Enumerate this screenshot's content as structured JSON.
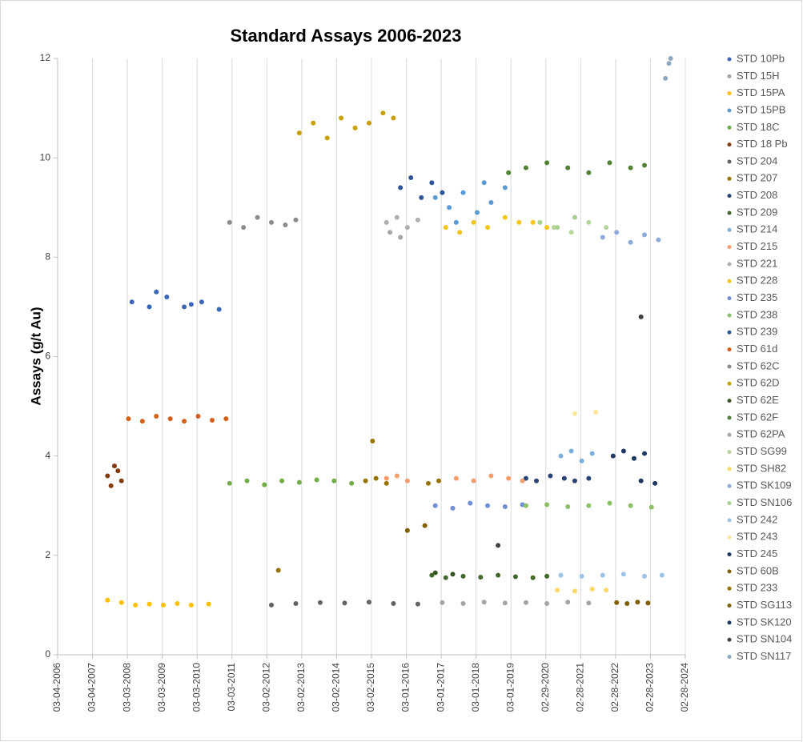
{
  "chart_data": {
    "type": "scatter",
    "title": "Standard Assays 2006-2023",
    "y_label": "Assays (g/t Au)",
    "xlim": [
      2006.17,
      2024.17
    ],
    "ylim": [
      0,
      12
    ],
    "yticks": [
      0,
      2,
      4,
      6,
      8,
      10,
      12
    ],
    "grid": "x",
    "legend": "right",
    "xticks": [
      {
        "value": 2006.17,
        "label": "03-04-2006"
      },
      {
        "value": 2007.17,
        "label": "03-04-2007"
      },
      {
        "value": 2008.17,
        "label": "03-03-2008"
      },
      {
        "value": 2009.17,
        "label": "03-03-2009"
      },
      {
        "value": 2010.17,
        "label": "03-03-2010"
      },
      {
        "value": 2011.17,
        "label": "03-03-2011"
      },
      {
        "value": 2012.17,
        "label": "03-02-2012"
      },
      {
        "value": 2013.17,
        "label": "03-02-2013"
      },
      {
        "value": 2014.17,
        "label": "03-02-2014"
      },
      {
        "value": 2015.17,
        "label": "03-02-2015"
      },
      {
        "value": 2016.17,
        "label": "03-01-2016"
      },
      {
        "value": 2017.17,
        "label": "03-01-2017"
      },
      {
        "value": 2018.17,
        "label": "03-01-2018"
      },
      {
        "value": 2019.17,
        "label": "03-01-2019"
      },
      {
        "value": 2020.17,
        "label": "02-29-2020"
      },
      {
        "value": 2021.17,
        "label": "02-28-2021"
      },
      {
        "value": 2022.17,
        "label": "02-28-2022"
      },
      {
        "value": 2023.17,
        "label": "02-28-2023"
      },
      {
        "value": 2024.17,
        "label": "02-28-2024"
      }
    ],
    "series": [
      {
        "name": "STD 10Pb",
        "color": "#3a66b8",
        "x": [
          2008.3,
          2008.8,
          2009.3,
          2009.8,
          2010.3,
          2010.8,
          2009.0,
          2010.0
        ],
        "values": [
          7.1,
          7.0,
          7.2,
          7.0,
          7.1,
          6.95,
          7.3,
          7.05
        ]
      },
      {
        "name": "STD 15H",
        "color": "#a5a5a5",
        "x": [
          2017.2,
          2017.8,
          2018.4,
          2019.0,
          2019.6,
          2020.2,
          2020.8,
          2021.4
        ],
        "values": [
          1.05,
          1.03,
          1.06,
          1.04,
          1.05,
          1.03,
          1.06,
          1.04
        ]
      },
      {
        "name": "STD 15PA",
        "color": "#ffc000",
        "x": [
          2007.6,
          2008.0,
          2008.4,
          2008.8,
          2009.2,
          2009.6,
          2010.0,
          2010.5
        ],
        "values": [
          1.1,
          1.05,
          1.0,
          1.02,
          1.0,
          1.03,
          1.0,
          1.02
        ]
      },
      {
        "name": "STD 15PB",
        "color": "#5b9bd5",
        "x": [
          2017.0,
          2017.4,
          2017.8,
          2018.2,
          2018.6,
          2019.0,
          2017.6,
          2018.4
        ],
        "values": [
          9.2,
          9.0,
          9.3,
          8.9,
          9.1,
          9.4,
          8.7,
          9.5
        ]
      },
      {
        "name": "STD 18C",
        "color": "#70ad47",
        "x": [
          2011.1,
          2011.6,
          2012.1,
          2012.6,
          2013.1,
          2013.6,
          2014.1,
          2014.6
        ],
        "values": [
          3.45,
          3.5,
          3.42,
          3.5,
          3.47,
          3.52,
          3.5,
          3.45
        ]
      },
      {
        "name": "STD 18 Pb",
        "color": "#843c0c",
        "x": [
          2007.6,
          2007.8,
          2008.0,
          2007.7,
          2007.9
        ],
        "values": [
          3.6,
          3.8,
          3.5,
          3.4,
          3.7
        ]
      },
      {
        "name": "STD 204",
        "color": "#636363",
        "x": [
          2012.3,
          2013.0,
          2013.7,
          2014.4,
          2015.1,
          2015.8,
          2016.5
        ],
        "values": [
          1.0,
          1.03,
          1.05,
          1.04,
          1.06,
          1.03,
          1.02
        ]
      },
      {
        "name": "STD 207",
        "color": "#997300",
        "x": [
          2015.0,
          2015.3,
          2015.6,
          2016.8,
          2017.1
        ],
        "values": [
          3.5,
          3.55,
          3.45,
          3.45,
          3.5
        ]
      },
      {
        "name": "STD 208",
        "color": "#264478",
        "x": [
          2019.6,
          2019.9,
          2020.3,
          2020.7,
          2021.0,
          2021.4
        ],
        "values": [
          3.55,
          3.5,
          3.6,
          3.55,
          3.5,
          3.55
        ]
      },
      {
        "name": "STD 209",
        "color": "#43682b",
        "x": [
          2016.9,
          2017.3,
          2017.8,
          2018.3,
          2018.8,
          2019.3,
          2019.8,
          2020.2
        ],
        "values": [
          1.6,
          1.55,
          1.58,
          1.56,
          1.6,
          1.57,
          1.55,
          1.58
        ]
      },
      {
        "name": "STD 214",
        "color": "#7cafdd",
        "x": [
          2020.6,
          2020.9,
          2021.2,
          2021.5
        ],
        "values": [
          4.0,
          4.1,
          3.9,
          4.05
        ]
      },
      {
        "name": "STD 215",
        "color": "#f79d6b",
        "x": [
          2015.6,
          2015.9,
          2016.2,
          2017.6,
          2018.1,
          2018.6,
          2019.1,
          2019.5
        ],
        "values": [
          3.55,
          3.6,
          3.5,
          3.55,
          3.5,
          3.6,
          3.55,
          3.5
        ]
      },
      {
        "name": "STD 221",
        "color": "#b0b0b0",
        "x": [
          2015.6,
          2015.9,
          2016.2,
          2016.5
        ],
        "values": [
          8.7,
          8.8,
          8.6,
          8.75
        ]
      },
      {
        "name": "STD 228",
        "color": "#f5c518",
        "x": [
          2017.3,
          2017.7,
          2018.1,
          2018.5,
          2019.0,
          2019.4,
          2019.8,
          2020.2
        ],
        "values": [
          8.6,
          8.5,
          8.7,
          8.6,
          8.8,
          8.7,
          8.7,
          8.6
        ]
      },
      {
        "name": "STD 235",
        "color": "#6f8fd6",
        "x": [
          2017.0,
          2017.5,
          2018.0,
          2018.5,
          2019.0,
          2019.5
        ],
        "values": [
          3.0,
          2.95,
          3.05,
          3.0,
          2.98,
          3.02
        ]
      },
      {
        "name": "STD 238",
        "color": "#8cc168",
        "x": [
          2019.6,
          2020.2,
          2020.8,
          2021.4,
          2022.0,
          2022.6,
          2023.2
        ],
        "values": [
          3.0,
          3.02,
          2.98,
          3.0,
          3.05,
          3.0,
          2.97
        ]
      },
      {
        "name": "STD 239",
        "color": "#2f5597",
        "x": [
          2016.0,
          2016.3,
          2016.6,
          2016.9,
          2017.2
        ],
        "values": [
          9.4,
          9.6,
          9.2,
          9.5,
          9.3
        ]
      },
      {
        "name": "STD 61d",
        "color": "#d4601a",
        "x": [
          2008.2,
          2008.6,
          2009.0,
          2009.4,
          2009.8,
          2010.2,
          2010.6,
          2011.0
        ],
        "values": [
          4.75,
          4.7,
          4.8,
          4.75,
          4.7,
          4.8,
          4.72,
          4.75
        ]
      },
      {
        "name": "STD 62C",
        "color": "#8c8c8c",
        "x": [
          2011.1,
          2011.5,
          2011.9,
          2012.3,
          2012.7,
          2013.0
        ],
        "values": [
          8.7,
          8.6,
          8.8,
          8.7,
          8.65,
          8.75
        ]
      },
      {
        "name": "STD 62D",
        "color": "#c9a000",
        "x": [
          2013.1,
          2013.5,
          2013.9,
          2014.3,
          2014.7,
          2015.1,
          2015.5,
          2015.8
        ],
        "values": [
          10.5,
          10.7,
          10.4,
          10.8,
          10.6,
          10.7,
          10.9,
          10.8
        ]
      },
      {
        "name": "STD 62E",
        "color": "#375623",
        "x": [
          2017.0,
          2017.5
        ],
        "values": [
          1.65,
          1.62
        ]
      },
      {
        "name": "STD 62F",
        "color": "#548235",
        "x": [
          2019.1,
          2019.6,
          2020.2,
          2020.8,
          2021.4,
          2022.0,
          2022.6,
          2023.0
        ],
        "values": [
          9.7,
          9.8,
          9.9,
          9.8,
          9.7,
          9.9,
          9.8,
          9.85
        ]
      },
      {
        "name": "STD 62PA",
        "color": "#a6a6a6",
        "x": [
          2015.7,
          2016.0
        ],
        "values": [
          8.5,
          8.4
        ]
      },
      {
        "name": "STD SG99",
        "color": "#b4d69a",
        "x": [
          2020.4,
          2020.9,
          2021.4,
          2021.9
        ],
        "values": [
          8.6,
          8.5,
          8.7,
          8.6
        ]
      },
      {
        "name": "STD SH82",
        "color": "#ffd966",
        "x": [
          2020.5,
          2021.0,
          2021.5,
          2021.9
        ],
        "values": [
          1.3,
          1.28,
          1.32,
          1.3
        ]
      },
      {
        "name": "STD SK109",
        "color": "#8faadc",
        "x": [
          2021.8,
          2022.2,
          2022.6,
          2023.0,
          2023.4
        ],
        "values": [
          8.4,
          8.5,
          8.3,
          8.45,
          8.35
        ]
      },
      {
        "name": "STD SN106",
        "color": "#a9d18e",
        "x": [
          2020.0,
          2020.5,
          2021.0
        ],
        "values": [
          8.7,
          8.6,
          8.8
        ]
      },
      {
        "name": "STD 242",
        "color": "#9dc3e6",
        "x": [
          2020.6,
          2021.2,
          2021.8,
          2022.4,
          2023.0,
          2023.5
        ],
        "values": [
          1.6,
          1.58,
          1.6,
          1.62,
          1.58,
          1.6
        ]
      },
      {
        "name": "STD 243",
        "color": "#ffe699",
        "x": [
          2021.0,
          2021.6
        ],
        "values": [
          4.85,
          4.88
        ]
      },
      {
        "name": "STD 245",
        "color": "#1f3864",
        "x": [
          2022.1,
          2022.4,
          2022.7,
          2023.0
        ],
        "values": [
          4.0,
          4.1,
          3.95,
          4.05
        ]
      },
      {
        "name": "STD 60B",
        "color": "#7f6000",
        "x": [
          2022.2,
          2022.5,
          2022.8,
          2023.1
        ],
        "values": [
          1.05,
          1.03,
          1.06,
          1.04
        ]
      },
      {
        "name": "STD 233",
        "color": "#997300",
        "x": [
          2012.5,
          2015.2
        ],
        "values": [
          1.7,
          4.3
        ]
      },
      {
        "name": "STD SG113",
        "color": "#806000",
        "x": [
          2016.2,
          2016.7
        ],
        "values": [
          2.5,
          2.6
        ]
      },
      {
        "name": "STD SK120",
        "color": "#203864",
        "x": [
          2022.9,
          2023.3
        ],
        "values": [
          3.5,
          3.45
        ]
      },
      {
        "name": "STD SN104",
        "color": "#404040",
        "x": [
          2018.8,
          2022.9
        ],
        "values": [
          2.2,
          6.8
        ]
      },
      {
        "name": "STD SN117",
        "color": "#8ea9c1",
        "x": [
          2023.6,
          2023.7,
          2023.75
        ],
        "values": [
          11.6,
          11.9,
          12.0
        ]
      }
    ]
  }
}
